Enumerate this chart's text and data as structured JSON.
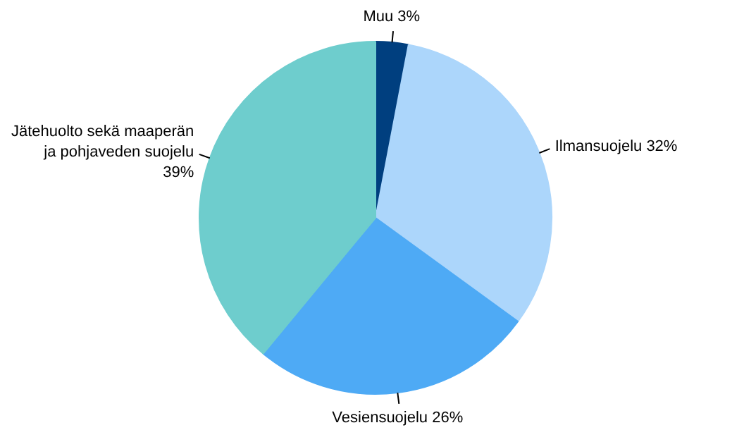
{
  "chart_data": {
    "type": "pie",
    "categories": [
      "Muu",
      "Ilmansuojelu",
      "Vesiensuojelu",
      "Jätehuolto sekä maaperän ja pohjaveden suojelu"
    ],
    "values": [
      3,
      32,
      26,
      39
    ],
    "value_labels": [
      "3%",
      "32%",
      "26%",
      "39%"
    ],
    "colors": [
      "#003f7f",
      "#acd6fb",
      "#4eaaf5",
      "#6ecdcd"
    ]
  }
}
